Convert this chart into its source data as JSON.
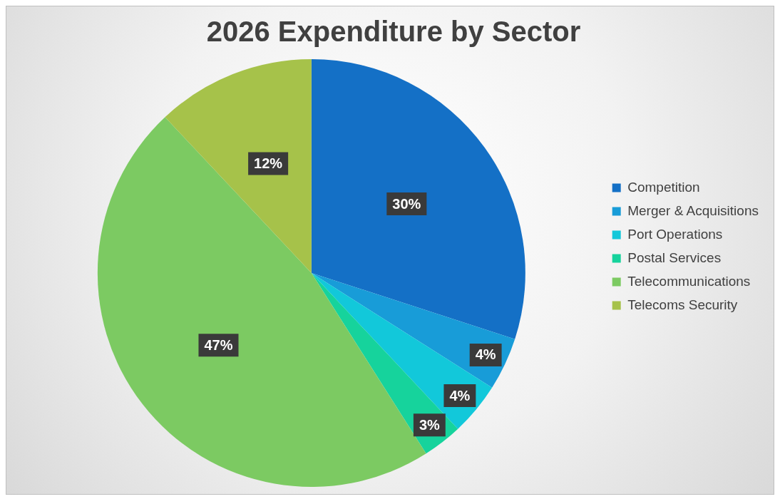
{
  "chart_data": {
    "type": "pie",
    "title": "2026 Expenditure by Sector",
    "categories": [
      "Competition",
      "Merger & Acquisitions",
      "Port Operations",
      "Postal Services",
      "Telecommunications",
      "Telecoms Security"
    ],
    "values": [
      30,
      4,
      4,
      3,
      47,
      12
    ],
    "value_labels": [
      "30%",
      "4%",
      "4%",
      "3%",
      "47%",
      "12%"
    ],
    "colors": [
      "#1470c6",
      "#189cd8",
      "#12c8da",
      "#16d39c",
      "#7cca62",
      "#a6c24a"
    ],
    "legend": "right"
  }
}
